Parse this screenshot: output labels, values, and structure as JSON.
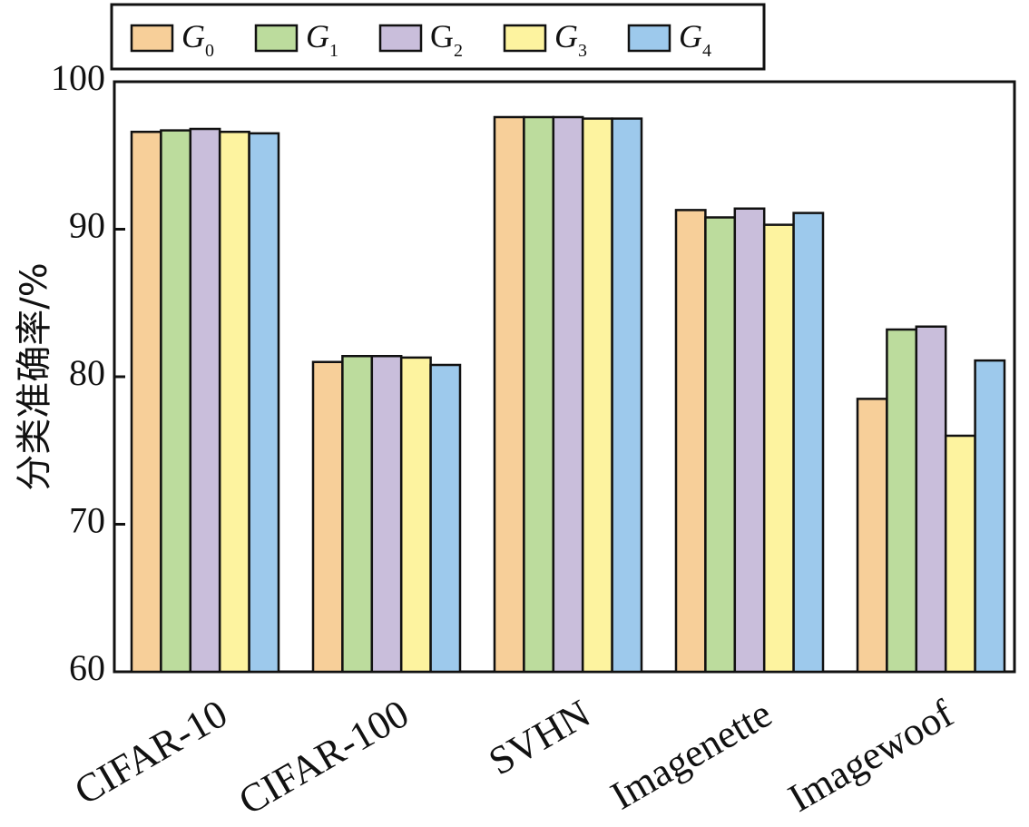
{
  "chart_data": {
    "type": "bar",
    "title": "",
    "xlabel": "",
    "ylabel": "分类准确率/%",
    "ylim": [
      60,
      100
    ],
    "yticks": [
      60,
      70,
      80,
      90,
      100
    ],
    "grid": false,
    "legend_position": "top",
    "categories": [
      "CIFAR-10",
      "CIFAR-100",
      "SVHN",
      "Imagenette",
      "Imagewoof"
    ],
    "series": [
      {
        "name": "G",
        "subscript": "0",
        "italic": true,
        "color": "#f7cf99",
        "values": [
          96.6,
          81.0,
          97.6,
          91.3,
          78.5
        ]
      },
      {
        "name": "G",
        "subscript": "1",
        "italic": true,
        "color": "#bcdc9d",
        "values": [
          96.7,
          81.4,
          97.6,
          90.8,
          83.2
        ]
      },
      {
        "name": "G",
        "subscript": "2",
        "italic": false,
        "color": "#c9bedb",
        "values": [
          96.8,
          81.4,
          97.6,
          91.4,
          83.4
        ]
      },
      {
        "name": "G",
        "subscript": "3",
        "italic": true,
        "color": "#fdf39f",
        "values": [
          96.6,
          81.3,
          97.5,
          90.3,
          76.0
        ]
      },
      {
        "name": "G",
        "subscript": "4",
        "italic": true,
        "color": "#9dc9ec",
        "values": [
          96.5,
          80.8,
          97.5,
          91.1,
          81.1
        ]
      }
    ]
  }
}
